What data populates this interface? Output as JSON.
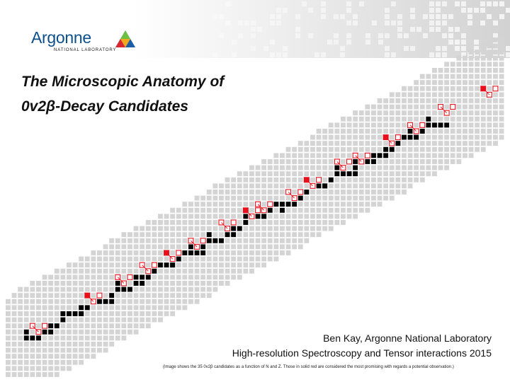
{
  "header": {
    "logo": {
      "wordmark": "Argonne",
      "subtitle": "NATIONAL LABORATORY",
      "brand_color": "#0d4f8a"
    }
  },
  "title": {
    "line1": "The Microscopic Anatomy of",
    "line2": "0v2β-Decay Candidates"
  },
  "credit": {
    "line1": "Ben Kay, Argonne National Laboratory",
    "line2": "High-resolution Spectroscopy and Tensor interactions 2015",
    "note": "(Image shows the 35 0v2β candidates as a function of N and Z. Those in solid red are considered the most promising with regards a potential observation.)"
  },
  "figure": {
    "colors": {
      "stable": "#000000",
      "promising_candidate": "#e8101c",
      "candidate": "#ffffff",
      "candidate_outline": "#e8101c",
      "nuclide": "#d4d4d4"
    }
  }
}
